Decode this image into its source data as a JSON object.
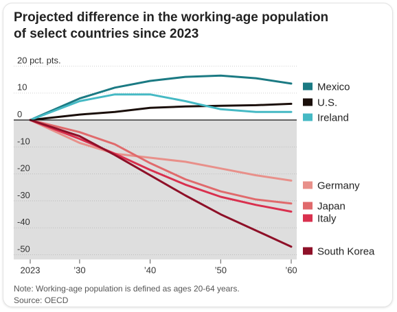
{
  "title_lines": [
    "Projected difference in the working-age population",
    "of select countries since 2023"
  ],
  "note": "Note: Working-age population is defined as ages 20-64 years.",
  "source": "Source: OECD",
  "chart_data": {
    "type": "line",
    "title": "Projected difference in the working-age population of select countries since 2023",
    "y_unit_label": "20 pct. pts.",
    "ylim": [
      -52,
      22
    ],
    "xlim": [
      2023,
      2060
    ],
    "y_ticks": [
      20,
      10,
      0,
      -10,
      -20,
      -30,
      -40,
      -50
    ],
    "y_tick_labels": [
      "20 pct. pts.",
      "10",
      "0",
      "-10",
      "-20",
      "-30",
      "-40",
      "-50"
    ],
    "x_ticks": [
      2023,
      2030,
      2040,
      2050,
      2060
    ],
    "x_tick_labels": [
      "2023",
      "’30",
      "’40",
      "’50",
      "’60"
    ],
    "grid": "horizontal",
    "negative_region_shaded": true,
    "legend": "right, labels at line ends",
    "series": [
      {
        "name": "Mexico",
        "color": "#1b7a83",
        "x": [
          2023,
          2030,
          2035,
          2040,
          2045,
          2050,
          2055,
          2060
        ],
        "values": [
          0,
          8,
          12,
          14.5,
          16,
          16.5,
          15.5,
          13.5
        ]
      },
      {
        "name": "U.S.",
        "color": "#1a0e0a",
        "x": [
          2023,
          2030,
          2035,
          2040,
          2045,
          2050,
          2055,
          2060
        ],
        "values": [
          0,
          2,
          3,
          4.5,
          5,
          5.3,
          5.5,
          6
        ]
      },
      {
        "name": "Ireland",
        "color": "#45b9c4",
        "x": [
          2023,
          2030,
          2035,
          2040,
          2045,
          2050,
          2055,
          2060
        ],
        "values": [
          0,
          7,
          9.5,
          9.5,
          7,
          4,
          3,
          3
        ]
      },
      {
        "name": "Germany",
        "color": "#e8908a",
        "x": [
          2023,
          2030,
          2035,
          2040,
          2045,
          2050,
          2055,
          2060
        ],
        "values": [
          0,
          -8.5,
          -12.5,
          -14,
          -15.5,
          -18,
          -20.5,
          -22.5
        ]
      },
      {
        "name": "Japan",
        "color": "#e06a6c",
        "x": [
          2023,
          2030,
          2035,
          2040,
          2045,
          2050,
          2055,
          2060
        ],
        "values": [
          0,
          -4.5,
          -9,
          -16,
          -22,
          -26.5,
          -29.5,
          -31
        ]
      },
      {
        "name": "Italy",
        "color": "#d9304e",
        "x": [
          2023,
          2030,
          2035,
          2040,
          2045,
          2050,
          2055,
          2060
        ],
        "values": [
          0,
          -7,
          -12.5,
          -18.5,
          -24,
          -28.5,
          -31.5,
          -34
        ]
      },
      {
        "name": "South Korea",
        "color": "#8e1028",
        "x": [
          2023,
          2030,
          2035,
          2040,
          2045,
          2050,
          2055,
          2060
        ],
        "values": [
          0,
          -6,
          -13,
          -20.5,
          -28,
          -35,
          -41,
          -47
        ]
      }
    ]
  }
}
